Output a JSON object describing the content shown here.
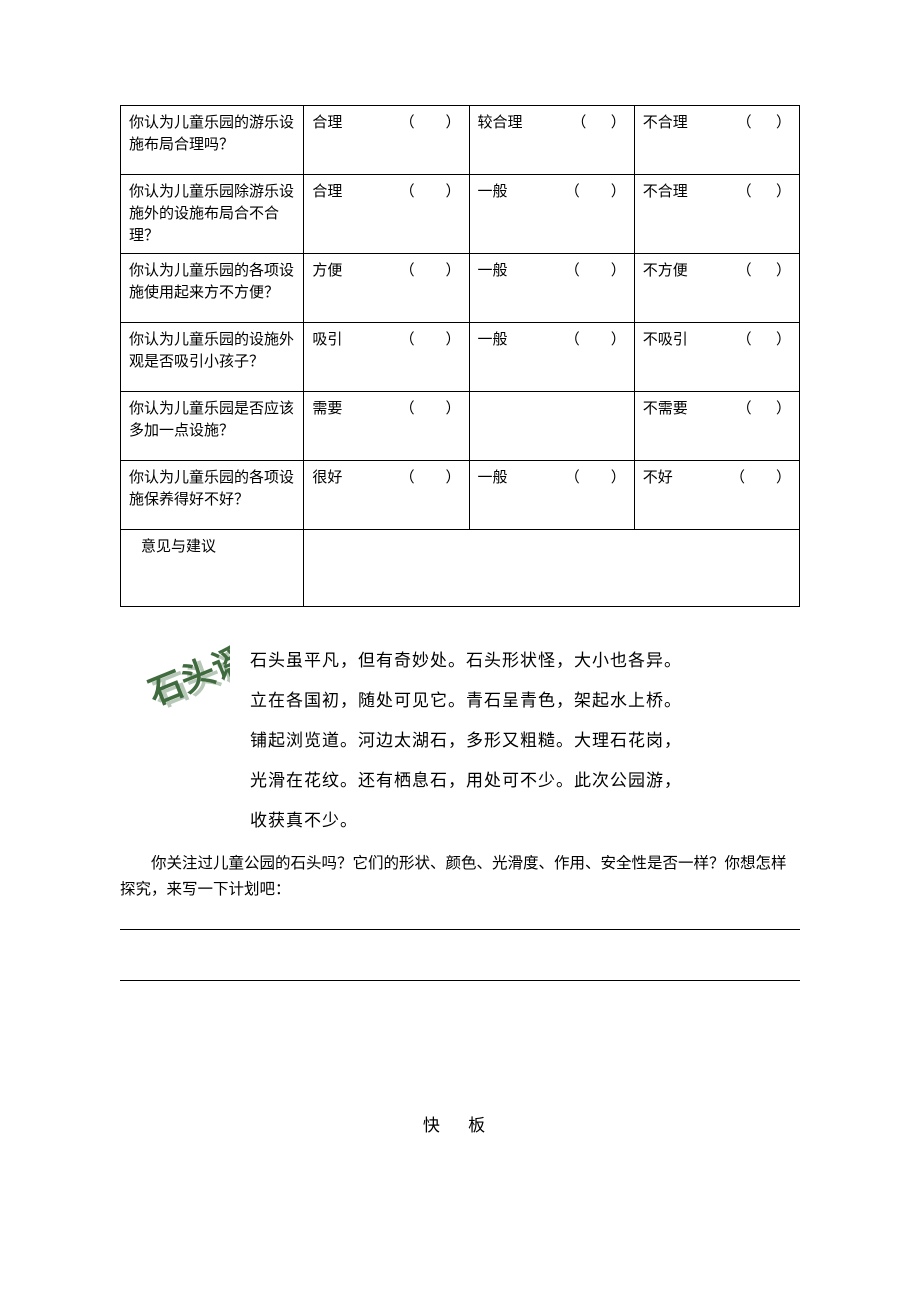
{
  "table": {
    "rows": [
      {
        "question": "你认为儿童乐园的游乐设施布局合理吗？",
        "opts": [
          "合理",
          "较合理",
          "不合理"
        ],
        "paren": [
          true,
          true,
          true
        ]
      },
      {
        "question": "你认为儿童乐园除游乐设施外的设施布局合不合理？",
        "opts": [
          "合理",
          "一般",
          "不合理"
        ],
        "paren": [
          true,
          true,
          true
        ]
      },
      {
        "question": "你认为儿童乐园的各项设施使用起来方不方便？",
        "opts": [
          "方便",
          "一般",
          "不方便"
        ],
        "paren": [
          true,
          true,
          true
        ]
      },
      {
        "question": "你认为儿童乐园的设施外观是否吸引小孩子？",
        "opts": [
          "吸引",
          "一般",
          "不吸引"
        ],
        "paren": [
          true,
          true,
          true
        ]
      },
      {
        "question": "你认为儿童乐园是否应该多加一点设施？",
        "opts": [
          "需要",
          "",
          "不需要"
        ],
        "paren": [
          true,
          false,
          true
        ]
      },
      {
        "question": "你认为儿童乐园的各项设施保养得好不好？",
        "opts": [
          "很好",
          "一般",
          "不好"
        ],
        "paren": [
          true,
          true,
          true
        ]
      }
    ],
    "suggest_label": "意见与建议"
  },
  "wordart": {
    "text": "石头谣",
    "fill_color": "#3f6b3f",
    "shadow_color": "#b8c8b8",
    "font_size": 34
  },
  "poem": {
    "lines": [
      "石头虽平凡，但有奇妙处。石头形状怪，大小也各异。",
      "立在各国初，随处可见它。青石呈青色，架起水上桥。",
      "铺起浏览道。河边太湖石，多形又粗糙。大理石花岗，",
      "光滑在花纹。还有栖息石，用处可不少。此次公园游，",
      "收获真不少。"
    ]
  },
  "follow_question": "你关注过儿童公园的石头吗？它们的形状、颜色、光滑度、作用、安全性是否一样？你想怎样探究，来写一下计划吧：",
  "footer_title": "快 板",
  "paren_open": "（",
  "paren_close": "）"
}
